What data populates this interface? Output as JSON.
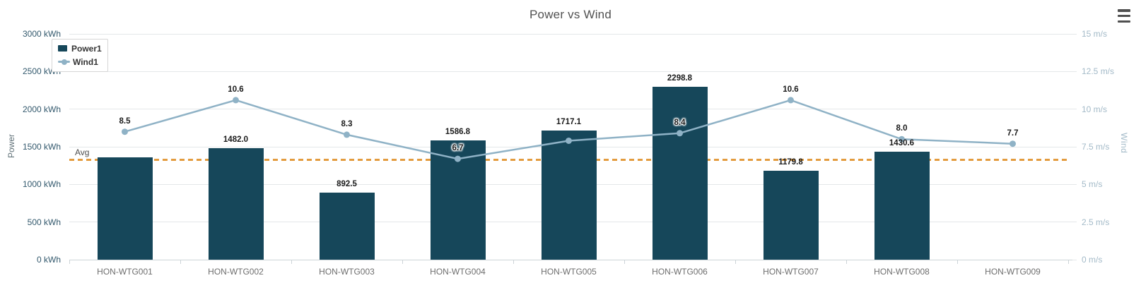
{
  "header": {
    "title": "Power vs Wind",
    "menu_icon": "hamburger-menu-icon"
  },
  "legend": {
    "items": [
      {
        "label": "Power1",
        "marker": "bar-swatch",
        "color": "#16475a"
      },
      {
        "label": "Wind1",
        "marker": "line-marker-swatch",
        "color": "#8fb2c6"
      }
    ]
  },
  "chart_data": {
    "type": "bar",
    "subtype": "bar+line dual-axis combo",
    "title": "Power vs Wind",
    "categories": [
      "HON-WTG001",
      "HON-WTG002",
      "HON-WTG003",
      "HON-WTG004",
      "HON-WTG005",
      "HON-WTG006",
      "HON-WTG007",
      "HON-WTG008",
      "HON-WTG009"
    ],
    "series": [
      {
        "name": "Power1",
        "type": "bar",
        "y_axis": "left",
        "color": "#16475a",
        "values": [
          1360,
          1482.0,
          892.5,
          1586.8,
          1717.1,
          2298.8,
          1179.8,
          1430.6,
          null
        ],
        "data_labels": [
          "",
          "1482.0",
          "892.5",
          "1586.8",
          "1717.1",
          "2298.8",
          "1179.8",
          "1430.6",
          ""
        ]
      },
      {
        "name": "Wind1",
        "type": "line",
        "y_axis": "right",
        "color": "#8fb2c6",
        "values": [
          8.5,
          10.6,
          8.3,
          6.7,
          7.9,
          8.4,
          10.6,
          8.0,
          7.7
        ],
        "data_labels": [
          "8.5",
          "10.6",
          "8.3",
          "6.7",
          "",
          "8.4",
          "10.6",
          "8.0",
          "7.7"
        ]
      }
    ],
    "left_axis": {
      "name": "Power",
      "min": 0,
      "max": 3000,
      "tick_step": 500,
      "tick_labels": [
        "0 kWh",
        "500 kWh",
        "1000 kWh",
        "1500 kWh",
        "2000 kWh",
        "2500 kWh",
        "3000 kWh"
      ]
    },
    "right_axis": {
      "name": "Wind",
      "min": 0,
      "max": 15,
      "tick_step": 2.5,
      "tick_labels": [
        "0 m/s",
        "2.5 m/s",
        "5 m/s",
        "7.5 m/s",
        "10 m/s",
        "12.5 m/s",
        "15 m/s"
      ]
    },
    "avg_line": {
      "label": "Avg",
      "value": 1327,
      "color": "#e39c3f",
      "style": "dashed"
    },
    "grid": true,
    "legend_position": "top-left",
    "colors": {
      "bar": "#16475a",
      "line": "#8fb2c6",
      "avg_line": "#e39c3f",
      "left_tick_text": "#33596d",
      "right_tick_text": "#a3bac8",
      "x_tick_text": "#6e6e6e",
      "gridline": "#e4e7e9",
      "title_text": "#515151"
    }
  }
}
